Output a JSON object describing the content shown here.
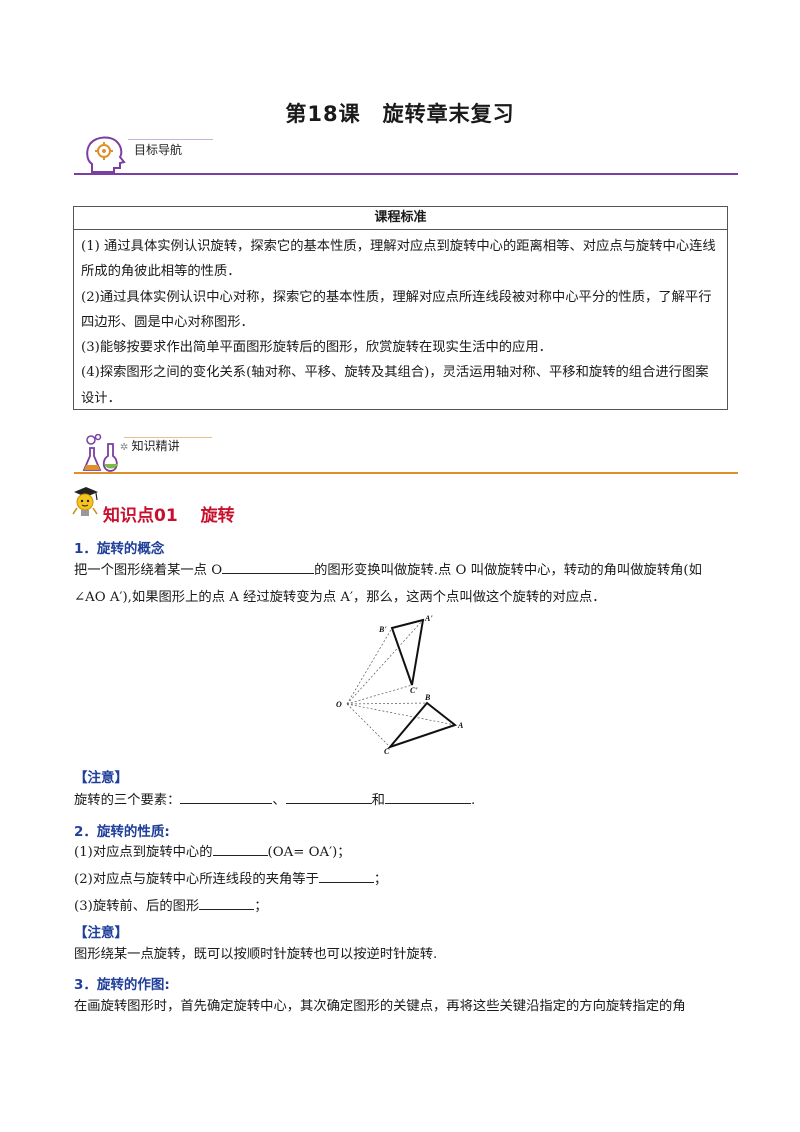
{
  "title": "第18课　旋转章末复习",
  "sections": {
    "goal_nav": "目标导航",
    "knowledge": "知识精讲"
  },
  "standard": {
    "heading": "课程标准",
    "items": [
      "(1) 通过具体实例认识旋转，探索它的基本性质，理解对应点到旋转中心的距离相等、对应点与旋转中心连线所成的角彼此相等的性质．",
      "(2)通过具体实例认识中心对称，探索它的基本性质，理解对应点所连线段被对称中心平分的性质，了解平行四边形、圆是中心对称图形．",
      "(3)能够按要求作出简单平面图形旋转后的图形，欣赏旋转在现实生活中的应用．",
      "(4)探索图形之间的变化关系(轴对称、平移、旋转及其组合)，灵活运用轴对称、平移和旋转的组合进行图案设计．"
    ]
  },
  "knowledge_point": {
    "title": "知识点01　 旋转",
    "h1": "1．旋转的概念",
    "p1_a": "把一个图形绕着某一点 O",
    "p1_b": "的图形变换叫做旋转.点 O 叫做旋转中心，转动的角叫做旋转角(如",
    "p1_c": "∠AO A′),如果图形上的点 A 经过旋转变为点 A′，那么，这两个点叫做这个旋转的对应点．",
    "figure_labels": {
      "O": "O",
      "A": "A",
      "B": "B",
      "C": "C",
      "A1": "A'",
      "B1": "B'",
      "C1": "C'"
    },
    "note1_label": "【注意】",
    "note1_a": "旋转的三个要素：",
    "note1_sep1": "、",
    "note1_sep2": "和",
    "note1_end": ".",
    "h2": "2．旋转的性质:",
    "prop1_a": "(1)对应点到旋转中心的",
    "prop1_b": "(OA= OA′)；",
    "prop2_a": "(2)对应点与旋转中心所连线段的夹角等于",
    "prop2_b": "；",
    "prop3_a": "(3)旋转前、后的图形",
    "prop3_b": "；",
    "note2_label": "【注意】",
    "note2_text": "图形绕某一点旋转，既可以按顺时针旋转也可以按逆时针旋转.",
    "h3": "3．旋转的作图:",
    "p3": "在画旋转图形时，首先确定旋转中心，其次确定图形的关键点，再将这些关键沿指定的方向旋转指定的角"
  }
}
